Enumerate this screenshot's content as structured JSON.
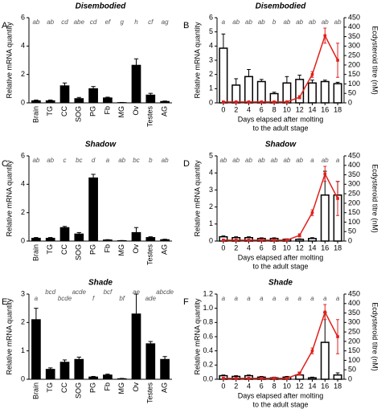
{
  "chart_data": [
    {
      "type": "bar",
      "panel": "A",
      "title": "Disembodied",
      "ylabel": "Relative mRNA quantity",
      "categories": [
        "Brain",
        "TG",
        "CC",
        "SOG",
        "PG",
        "Fb",
        "MG",
        "Ov",
        "Testes",
        "AG"
      ],
      "ylim": [
        0,
        6
      ],
      "yticks": [
        0,
        2,
        4,
        6
      ],
      "series": [
        {
          "color": "#000000",
          "values": [
            0.15,
            0.15,
            1.2,
            0.3,
            1.0,
            0.35,
            0.02,
            2.65,
            0.55,
            0.1
          ],
          "errors": [
            0.05,
            0.05,
            0.2,
            0.08,
            0.15,
            0.05,
            0.01,
            0.45,
            0.12,
            0.03
          ]
        }
      ],
      "letters": [
        "ab",
        "ab",
        "cd",
        "abe",
        "cd",
        "ef",
        "g",
        "h",
        "cf",
        "ag"
      ]
    },
    {
      "type": "bar",
      "panel": "B",
      "title": "Disembodied",
      "ylabel": "Relative mRNA quantity",
      "y2label": "Ecdysteroid titre (nM)",
      "xlabel": [
        "Days elapsed after molting",
        "to the adult stage"
      ],
      "x": [
        0,
        2,
        4,
        6,
        8,
        10,
        12,
        14,
        16,
        18
      ],
      "xlim": [
        -1,
        19
      ],
      "xticks": [
        0,
        2,
        4,
        6,
        8,
        10,
        12,
        14,
        16,
        18
      ],
      "ylim": [
        0,
        6
      ],
      "yticks": [
        0,
        1,
        2,
        3,
        4,
        5,
        6
      ],
      "y2lim": [
        0,
        450
      ],
      "y2ticks": [
        0,
        50,
        100,
        150,
        200,
        250,
        300,
        350,
        400,
        450
      ],
      "series": [
        {
          "color": "#ffffff",
          "values": [
            3.85,
            1.25,
            1.85,
            1.5,
            0.65,
            1.4,
            1.65,
            1.4,
            1.5,
            1.35
          ],
          "errors": [
            1.0,
            0.45,
            0.5,
            0.15,
            0.1,
            0.45,
            0.3,
            0.2,
            0.1,
            0.1
          ]
        },
        {
          "type": "line",
          "axis": "y2",
          "color": "#e0201b",
          "values": [
            5,
            5,
            5,
            5,
            5,
            5,
            30,
            150,
            355,
            225
          ],
          "errors": [
            2,
            2,
            2,
            2,
            2,
            2,
            8,
            15,
            40,
            90
          ]
        }
      ],
      "letters": [
        "a",
        "ab",
        "ab",
        "ab",
        "b",
        "ab",
        "ab",
        "ab",
        "ab",
        "ab"
      ]
    },
    {
      "type": "bar",
      "panel": "C",
      "title": "Shadow",
      "ylabel": "Relative mRNA quantity",
      "categories": [
        "Brain",
        "TG",
        "CC",
        "SOG",
        "PG",
        "Fb",
        "MG",
        "Ov",
        "Testes",
        "AG"
      ],
      "ylim": [
        0,
        6
      ],
      "yticks": [
        0,
        2,
        4,
        6
      ],
      "series": [
        {
          "color": "#000000",
          "values": [
            0.2,
            0.2,
            0.95,
            0.5,
            4.45,
            0.08,
            0.03,
            0.6,
            0.25,
            0.1
          ],
          "errors": [
            0.05,
            0.05,
            0.08,
            0.1,
            0.25,
            0.02,
            0.01,
            0.35,
            0.05,
            0.03
          ]
        }
      ],
      "letters": [
        "ab",
        "ab",
        "c",
        "bc",
        "d",
        "a",
        "ab",
        "bc",
        "b",
        "ab"
      ]
    },
    {
      "type": "bar",
      "panel": "D",
      "title": "Shadow",
      "ylabel": "Relative mRNA quantity",
      "y2label": "Ecdysteroid titre (nM)",
      "xlabel": [
        "Days elapsed after molting",
        "to the adult stage"
      ],
      "x": [
        0,
        2,
        4,
        6,
        8,
        10,
        12,
        14,
        16,
        18
      ],
      "xlim": [
        -1,
        19
      ],
      "xticks": [
        0,
        2,
        4,
        6,
        8,
        10,
        12,
        14,
        16,
        18
      ],
      "ylim": [
        0,
        5
      ],
      "yticks": [
        0,
        1,
        2,
        3,
        4,
        5
      ],
      "y2lim": [
        0,
        450
      ],
      "y2ticks": [
        0,
        50,
        100,
        150,
        200,
        250,
        300,
        350,
        400,
        450
      ],
      "series": [
        {
          "color": "#ffffff",
          "values": [
            0.25,
            0.2,
            0.2,
            0.15,
            0.15,
            0.1,
            0.1,
            0.15,
            2.7,
            2.7
          ],
          "errors": [
            0.05,
            0.05,
            0.05,
            0.04,
            0.04,
            0.03,
            0.03,
            0.05,
            1.4,
            0.8
          ]
        },
        {
          "type": "line",
          "axis": "y2",
          "color": "#e0201b",
          "values": [
            5,
            5,
            5,
            5,
            5,
            5,
            30,
            150,
            355,
            225
          ],
          "errors": [
            2,
            2,
            2,
            2,
            2,
            2,
            8,
            15,
            40,
            90
          ]
        }
      ],
      "letters": [
        "ab",
        "ab",
        "ab",
        "ab",
        "ab",
        "ab",
        "ab",
        "a",
        "ab",
        "a"
      ]
    },
    {
      "type": "bar",
      "panel": "E",
      "title": "Shade",
      "ylabel": "Relative mRNA quantity",
      "categories": [
        "Brain",
        "TG",
        "CC",
        "SOG",
        "PG",
        "Fb",
        "MG",
        "Ov",
        "Testes",
        "AG"
      ],
      "ylim": [
        0,
        3
      ],
      "yticks": [
        0,
        1,
        2,
        3
      ],
      "series": [
        {
          "color": "#000000",
          "values": [
            2.1,
            0.35,
            0.6,
            0.7,
            0.08,
            0.15,
            0.02,
            2.3,
            1.25,
            0.7
          ],
          "errors": [
            0.4,
            0.05,
            0.08,
            0.08,
            0.02,
            0.03,
            0.01,
            0.7,
            0.08,
            0.1
          ]
        }
      ],
      "letters": [
        "a",
        "bcd",
        "bcde",
        "acde",
        "f",
        "bcf",
        "bf",
        "ae",
        "ade",
        "abcde"
      ]
    },
    {
      "type": "bar",
      "panel": "F",
      "title": "Shade",
      "ylabel": "Relative mRNA quantity",
      "y2label": "Ecdysteroid titre (nM)",
      "xlabel": [
        "Days elapsed after molting",
        "to the adult stage"
      ],
      "x": [
        0,
        2,
        4,
        6,
        8,
        10,
        12,
        14,
        16,
        18
      ],
      "xlim": [
        -1,
        19
      ],
      "xticks": [
        0,
        2,
        4,
        6,
        8,
        10,
        12,
        14,
        16,
        18
      ],
      "ylim": [
        0,
        1.2
      ],
      "yticks": [
        {
          "value": 0,
          "label": "0.0"
        },
        0.2,
        0.4,
        0.6,
        0.8,
        {
          "value": 1,
          "label": "1.0"
        },
        1.2
      ],
      "y2lim": [
        0,
        450
      ],
      "y2ticks": [
        0,
        50,
        100,
        150,
        200,
        250,
        300,
        350,
        400,
        450
      ],
      "series": [
        {
          "color": "#ffffff",
          "values": [
            0.05,
            0.04,
            0.05,
            0.03,
            0.02,
            0.03,
            0.06,
            0.02,
            0.52,
            0.06
          ],
          "errors": [
            0.01,
            0.01,
            0.01,
            0.01,
            0.01,
            0.01,
            0.04,
            0.01,
            0.42,
            0.03
          ]
        },
        {
          "type": "line",
          "axis": "y2",
          "color": "#e0201b",
          "values": [
            5,
            5,
            5,
            5,
            5,
            5,
            30,
            150,
            355,
            225
          ],
          "errors": [
            2,
            2,
            2,
            2,
            2,
            2,
            8,
            15,
            40,
            90
          ]
        }
      ],
      "letters": [
        "a",
        "a",
        "a",
        "a",
        "a",
        "a",
        "a",
        "a",
        "a",
        "a"
      ]
    }
  ]
}
